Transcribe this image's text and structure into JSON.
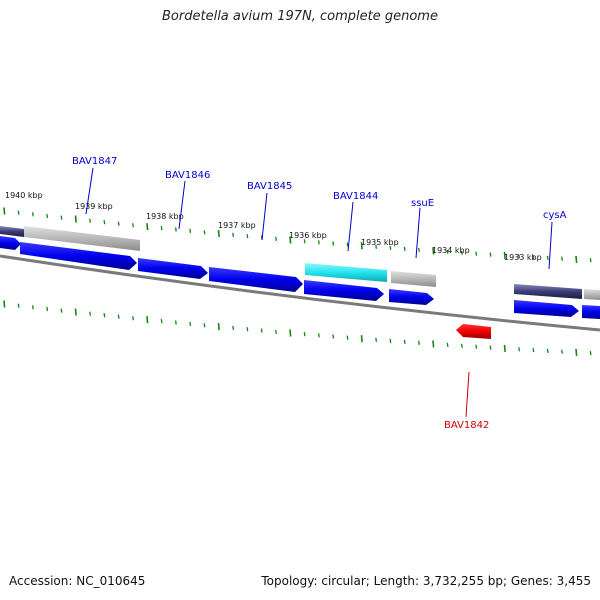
{
  "title": "Bordetella avium 197N, complete genome",
  "footer": {
    "accession": "Accession: NC_010645",
    "summary": "Topology: circular; Length: 3,732,255 bp; Genes: 3,455"
  },
  "colors": {
    "cds_forward": "#0000ee",
    "cds_reverse": "#ee0000",
    "feature_gray": "#b8b8b8",
    "feature_cyan": "#22e4ee",
    "feature_purple": "#3c3c78",
    "tick": "#118811",
    "backbone": "#808080",
    "label_forward": "#0000cc",
    "label_reverse": "#cc0000"
  },
  "ticks": [
    {
      "label": "1940 kbp"
    },
    {
      "label": "1939 kbp"
    },
    {
      "label": "1938 kbp"
    },
    {
      "label": "1937 kbp"
    },
    {
      "label": "1936 kbp"
    },
    {
      "label": "1935 kbp"
    },
    {
      "label": "1934 kbp"
    },
    {
      "label": "1933 kbp"
    }
  ],
  "gene_labels": [
    {
      "name": "BAV1847",
      "strand": "forward"
    },
    {
      "name": "BAV1846",
      "strand": "forward"
    },
    {
      "name": "BAV1845",
      "strand": "forward"
    },
    {
      "name": "BAV1844",
      "strand": "forward"
    },
    {
      "name": "ssuE",
      "strand": "forward"
    },
    {
      "name": "cysA",
      "strand": "forward"
    },
    {
      "name": "BAV1842",
      "strand": "reverse"
    }
  ]
}
